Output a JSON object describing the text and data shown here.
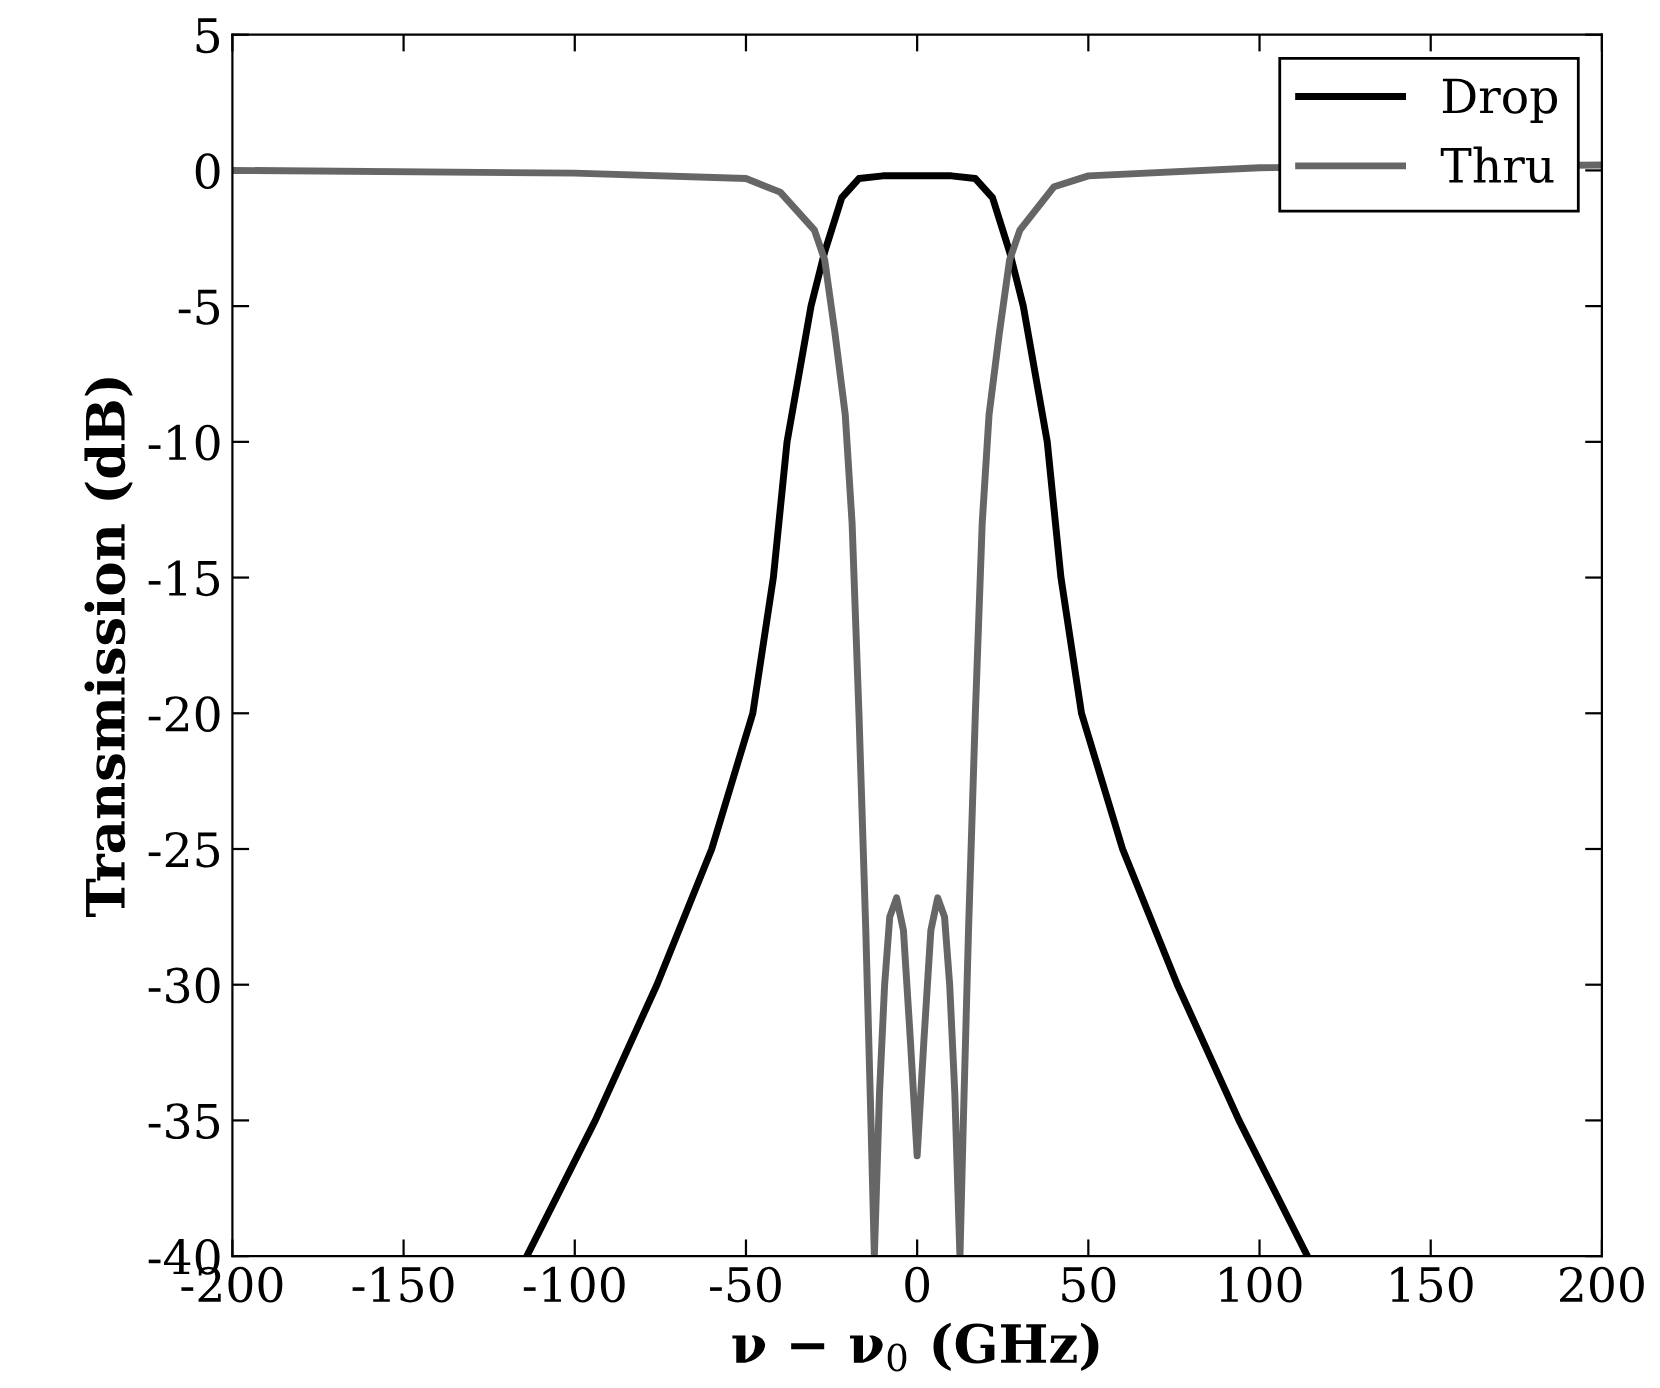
{
  "chart_data": {
    "type": "line",
    "xlabel": "ν − ν$_{0}$ (GHz)",
    "ylabel": "Transmission (dB)",
    "xlim": [
      -200,
      200
    ],
    "ylim": [
      -40,
      5
    ],
    "xticks": [
      -200,
      -150,
      -100,
      -50,
      0,
      50,
      100,
      150,
      200
    ],
    "yticks": [
      -40,
      -35,
      -30,
      -25,
      -20,
      -15,
      -10,
      -5,
      0,
      5
    ],
    "grid": false,
    "legend": "top right",
    "marker": "none",
    "line_style": "solid",
    "series": [
      {
        "name": "Drop",
        "color": "#000000",
        "x": [
          -114,
          -94,
          -76,
          -60,
          -48,
          -42,
          -38,
          -31,
          -27,
          -22,
          -17,
          -10,
          0,
          10,
          17,
          22,
          27,
          31,
          38,
          42,
          48,
          60,
          76,
          94,
          114
        ],
        "values": [
          -40,
          -35,
          -30,
          -25,
          -20,
          -15,
          -10,
          -5,
          -3,
          -1,
          -0.3,
          -0.2,
          -0.2,
          -0.2,
          -0.3,
          -1,
          -3,
          -5,
          -10,
          -15,
          -20,
          -25,
          -30,
          -35,
          -40
        ]
      },
      {
        "name": "Thru",
        "color": "#666666",
        "x": [
          -200,
          -100,
          -50,
          -40,
          -30,
          -27,
          -24,
          -21,
          -19,
          -17,
          -15,
          -13.5,
          -12.5,
          -11,
          -9.5,
          -8,
          -6,
          -4,
          -2,
          0,
          2,
          4,
          6,
          8,
          9.5,
          11,
          12.5,
          13.5,
          15,
          17,
          19,
          21,
          24,
          27,
          30,
          40,
          50,
          100,
          200
        ],
        "values": [
          0,
          -0.1,
          -0.3,
          -0.8,
          -2.2,
          -3.3,
          -6,
          -9,
          -13,
          -20,
          -28,
          -35,
          -40,
          -34,
          -30,
          -27.5,
          -26.8,
          -28,
          -32,
          -36.3,
          -32,
          -28,
          -26.8,
          -27.5,
          -30,
          -34,
          -40,
          -35,
          -28,
          -20,
          -13,
          -9,
          -6,
          -3.3,
          -2.2,
          -0.6,
          -0.2,
          0.1,
          0.2
        ]
      }
    ]
  }
}
